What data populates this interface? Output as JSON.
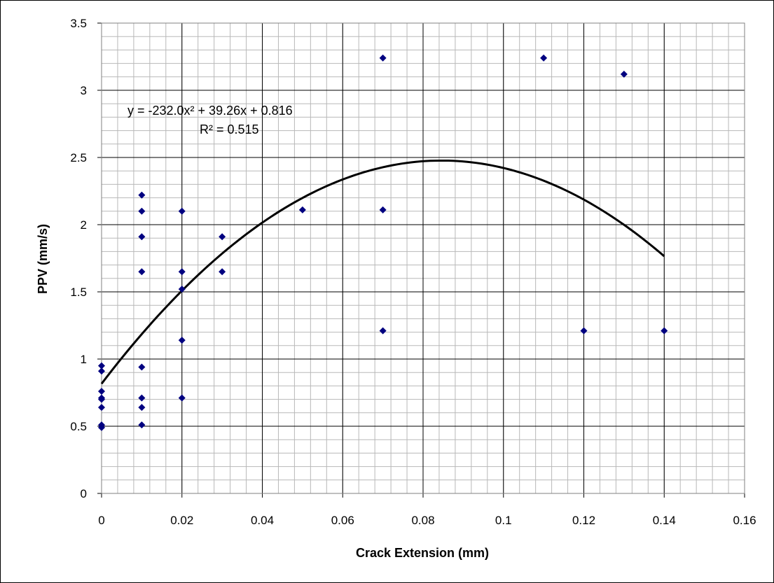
{
  "chart_data": {
    "type": "scatter",
    "title": "",
    "xlabel": "Crack Extension (mm)",
    "ylabel": "PPV (mm/s)",
    "xlim": [
      0,
      0.16
    ],
    "ylim": [
      0,
      3.5
    ],
    "x_ticks": [
      "0",
      "0.02",
      "0.04",
      "0.06",
      "0.08",
      "0.1",
      "0.12",
      "0.14",
      "0.16"
    ],
    "y_ticks": [
      "0",
      "0.5",
      "1",
      "1.5",
      "2",
      "2.5",
      "3",
      "3.5"
    ],
    "grid": "major and minor",
    "legend": "none",
    "marker": "diamond",
    "marker_color": "#000080",
    "line_color": "#000000",
    "points": [
      {
        "x": 0.0,
        "y": 0.95
      },
      {
        "x": 0.0,
        "y": 0.91
      },
      {
        "x": 0.0,
        "y": 0.76
      },
      {
        "x": 0.0,
        "y": 0.71
      },
      {
        "x": 0.0,
        "y": 0.7
      },
      {
        "x": 0.0,
        "y": 0.64
      },
      {
        "x": 0.0,
        "y": 0.51
      },
      {
        "x": 0.0,
        "y": 0.49
      },
      {
        "x": 0.01,
        "y": 2.22
      },
      {
        "x": 0.01,
        "y": 2.1
      },
      {
        "x": 0.01,
        "y": 1.91
      },
      {
        "x": 0.01,
        "y": 1.65
      },
      {
        "x": 0.01,
        "y": 0.94
      },
      {
        "x": 0.01,
        "y": 0.71
      },
      {
        "x": 0.01,
        "y": 0.64
      },
      {
        "x": 0.01,
        "y": 0.51
      },
      {
        "x": 0.02,
        "y": 2.1
      },
      {
        "x": 0.02,
        "y": 1.65
      },
      {
        "x": 0.02,
        "y": 1.52
      },
      {
        "x": 0.02,
        "y": 1.14
      },
      {
        "x": 0.02,
        "y": 0.71
      },
      {
        "x": 0.03,
        "y": 1.91
      },
      {
        "x": 0.03,
        "y": 1.65
      },
      {
        "x": 0.05,
        "y": 2.11
      },
      {
        "x": 0.07,
        "y": 3.24
      },
      {
        "x": 0.07,
        "y": 2.11
      },
      {
        "x": 0.07,
        "y": 1.21
      },
      {
        "x": 0.11,
        "y": 3.24
      },
      {
        "x": 0.12,
        "y": 1.21
      },
      {
        "x": 0.13,
        "y": 3.12
      },
      {
        "x": 0.14,
        "y": 1.21
      }
    ],
    "trendline": {
      "type": "polynomial",
      "coefficients": [
        -232.0,
        39.26,
        0.816
      ],
      "x_range": [
        0,
        0.14
      ],
      "equation_text": "y = -232.0x² + 39.26x + 0.816",
      "r2_text": "R² = 0.515"
    }
  }
}
